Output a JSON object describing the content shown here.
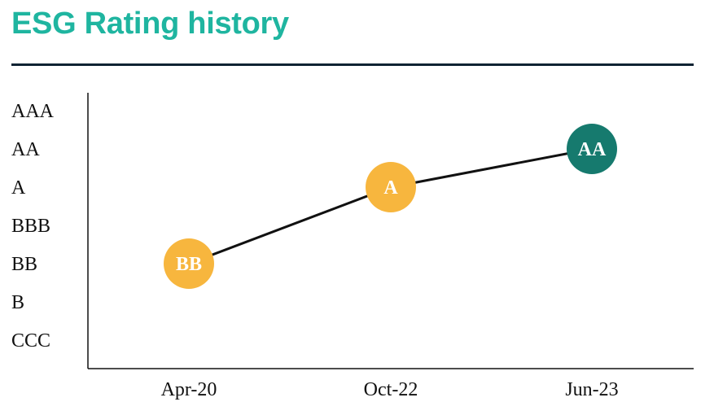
{
  "title": "ESG Rating history",
  "colors": {
    "title": "#1fb5a0",
    "A": "#f7b63e",
    "BB": "#f7b63e",
    "AA": "#167a6e",
    "line": "#111111"
  },
  "chart_data": {
    "type": "line",
    "title": "ESG Rating history",
    "xlabel": "",
    "ylabel": "",
    "y_categories": [
      "CCC",
      "B",
      "BB",
      "BBB",
      "A",
      "AA",
      "AAA"
    ],
    "categories": [
      "Apr-20",
      "Oct-22",
      "Jun-23"
    ],
    "values": [
      "BB",
      "A",
      "AA"
    ],
    "grid": false,
    "legend": "none"
  }
}
